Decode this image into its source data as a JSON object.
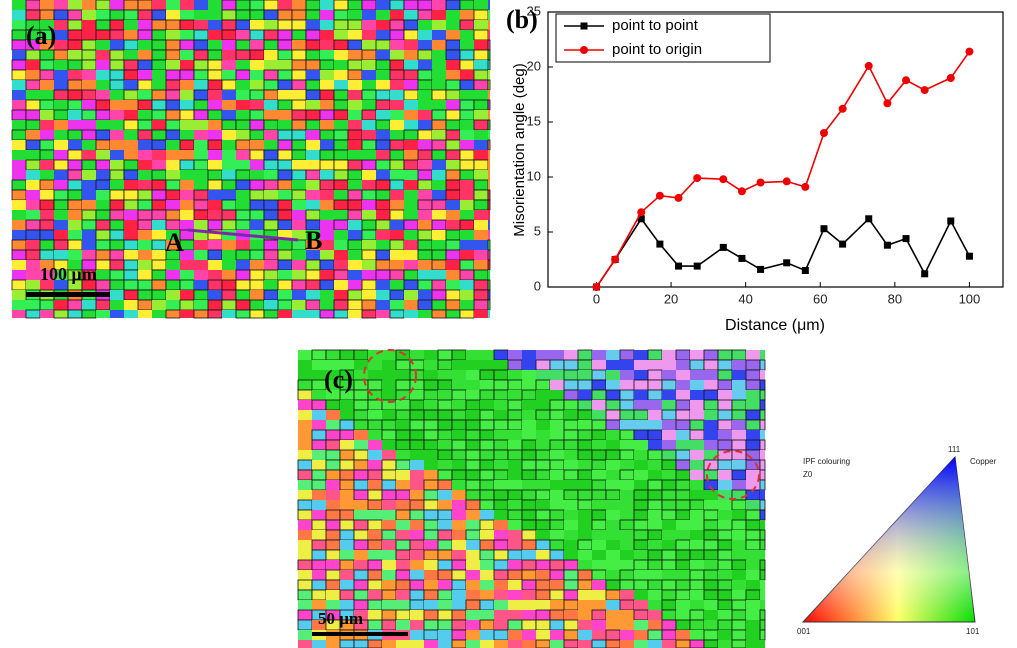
{
  "panel_a": {
    "label": "(a)",
    "point_a": "A",
    "point_b": "B",
    "scale_bar": "100 μm"
  },
  "panel_c": {
    "label": "(c)",
    "scale_bar": "50 μm",
    "ipf_legend": {
      "title": "IPF colouring",
      "material": "Copper",
      "direction": "Z0",
      "corner_top": "111",
      "corner_left": "001",
      "corner_right": "101"
    }
  },
  "chart_data": {
    "type": "line",
    "label": "(b)",
    "x_label": "Distance (μm)",
    "y_label": "Misorientation angle (deg)",
    "x": [
      0,
      5,
      12,
      17,
      22,
      27,
      34,
      39,
      44,
      51,
      56,
      61,
      66,
      73,
      78,
      83,
      88,
      95,
      100
    ],
    "series": [
      {
        "name": "point to point",
        "color": "#000000",
        "marker": "square",
        "values": [
          0,
          2.5,
          6.2,
          3.9,
          1.9,
          1.9,
          3.6,
          2.6,
          1.6,
          2.2,
          1.5,
          5.3,
          3.9,
          6.2,
          3.8,
          4.4,
          1.2,
          6.0,
          2.8
        ]
      },
      {
        "name": "point to origin",
        "color": "#ee0000",
        "marker": "circle",
        "values": [
          0,
          2.5,
          6.8,
          8.3,
          8.1,
          9.9,
          9.8,
          8.7,
          9.5,
          9.6,
          9.1,
          14.0,
          16.2,
          20.1,
          16.7,
          18.8,
          17.9,
          19.0,
          21.4
        ]
      }
    ],
    "xlim": [
      -13,
      109
    ],
    "ylim": [
      0,
      25
    ],
    "xticks": [
      0,
      20,
      40,
      60,
      80,
      100
    ],
    "yticks": [
      0,
      5,
      10,
      15,
      20,
      25
    ],
    "legend": "top-left"
  }
}
